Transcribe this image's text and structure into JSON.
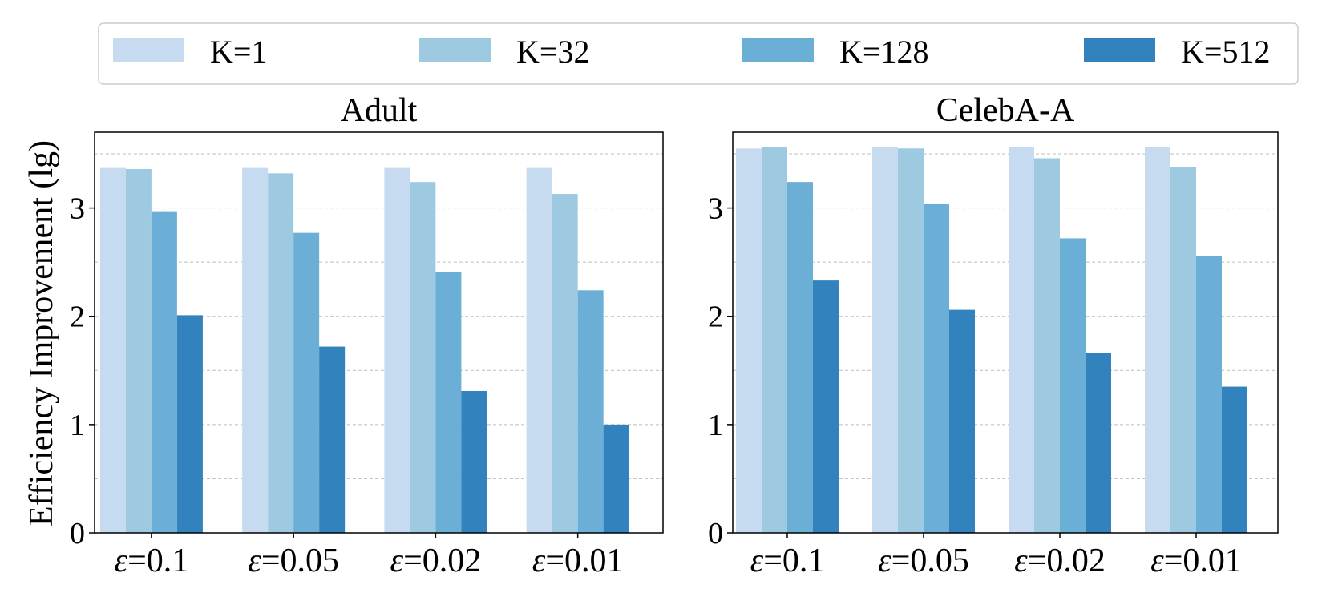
{
  "ylabel": "Efficiency Improvement (lg)",
  "legend": [
    {
      "label": "K=1",
      "color": "#c6dbef"
    },
    {
      "label": "K=32",
      "color": "#9ecae1"
    },
    {
      "label": "K=128",
      "color": "#6baed6"
    },
    {
      "label": "K=512",
      "color": "#3182bd"
    }
  ],
  "chart_data": [
    {
      "type": "bar",
      "title": "Adult",
      "xlabel": "",
      "ylabel": "Efficiency Improvement (lg)",
      "categories": [
        "ε=0.1",
        "ε=0.05",
        "ε=0.02",
        "ε=0.01"
      ],
      "category_prefix": "ε",
      "category_values": [
        "=0.1",
        "=0.05",
        "=0.02",
        "=0.01"
      ],
      "ylim": [
        0,
        3.7
      ],
      "yticks": [
        0,
        1,
        2,
        3
      ],
      "grid_y": [
        0.5,
        1,
        1.5,
        2,
        2.5,
        3,
        3.5
      ],
      "series": [
        {
          "name": "K=1",
          "values": [
            3.37,
            3.37,
            3.37,
            3.37
          ]
        },
        {
          "name": "K=32",
          "values": [
            3.36,
            3.32,
            3.24,
            3.13
          ]
        },
        {
          "name": "K=128",
          "values": [
            2.97,
            2.77,
            2.41,
            2.24
          ]
        },
        {
          "name": "K=512",
          "values": [
            2.01,
            1.72,
            1.31,
            1.0
          ]
        }
      ]
    },
    {
      "type": "bar",
      "title": "CelebA-A",
      "xlabel": "",
      "ylabel": "",
      "categories": [
        "ε=0.1",
        "ε=0.05",
        "ε=0.02",
        "ε=0.01"
      ],
      "category_prefix": "ε",
      "category_values": [
        "=0.1",
        "=0.05",
        "=0.02",
        "=0.01"
      ],
      "ylim": [
        0,
        3.7
      ],
      "yticks": [
        0,
        1,
        2,
        3
      ],
      "grid_y": [
        0.5,
        1,
        1.5,
        2,
        2.5,
        3,
        3.5
      ],
      "series": [
        {
          "name": "K=1",
          "values": [
            3.55,
            3.56,
            3.56,
            3.56
          ]
        },
        {
          "name": "K=32",
          "values": [
            3.56,
            3.55,
            3.46,
            3.38
          ]
        },
        {
          "name": "K=128",
          "values": [
            3.24,
            3.04,
            2.72,
            2.56
          ]
        },
        {
          "name": "K=512",
          "values": [
            2.33,
            2.06,
            1.66,
            1.35
          ]
        }
      ]
    }
  ]
}
